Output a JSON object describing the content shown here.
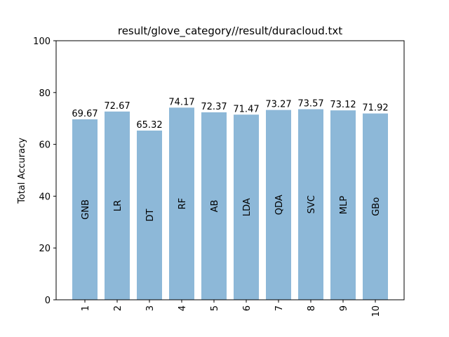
{
  "chart_data": {
    "type": "bar",
    "title": "result/glove_category//result/duracloud.txt",
    "xlabel": "",
    "ylabel": "Total Accuracy",
    "ylim": [
      0,
      100
    ],
    "yticks": [
      0,
      20,
      40,
      60,
      80,
      100
    ],
    "categories": [
      "1",
      "2",
      "3",
      "4",
      "5",
      "6",
      "7",
      "8",
      "9",
      "10"
    ],
    "labels": [
      "GNB",
      "LR",
      "DT",
      "RF",
      "AB",
      "LDA",
      "QDA",
      "SVC",
      "MLP",
      "GBo"
    ],
    "values": [
      69.67,
      72.67,
      65.32,
      74.17,
      72.37,
      71.47,
      73.27,
      73.57,
      73.12,
      71.92
    ],
    "value_labels": [
      "69.67",
      "72.67",
      "65.32",
      "74.17",
      "72.37",
      "71.47",
      "73.27",
      "73.57",
      "73.12",
      "71.92"
    ],
    "bar_color": "#8db8d8",
    "grid": false,
    "legend": "none"
  }
}
